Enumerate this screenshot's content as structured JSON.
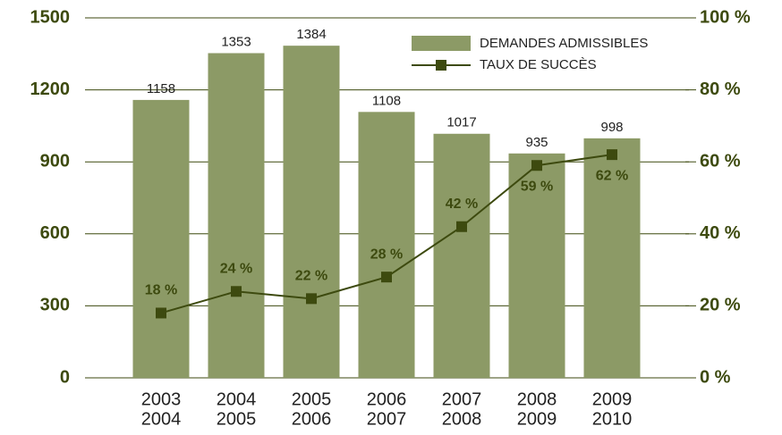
{
  "chart_data": {
    "type": "bar",
    "categories": [
      [
        "2003",
        "2004"
      ],
      [
        "2004",
        "2005"
      ],
      [
        "2005",
        "2006"
      ],
      [
        "2006",
        "2007"
      ],
      [
        "2007",
        "2008"
      ],
      [
        "2008",
        "2009"
      ],
      [
        "2009",
        "2010"
      ]
    ],
    "series": [
      {
        "name": "DEMANDES ADMISSIBLES",
        "color": "#8c9a66",
        "values": [
          1158,
          1353,
          1384,
          1108,
          1017,
          935,
          998
        ]
      },
      {
        "name": "TAUX DE SUCCÈS",
        "color": "#3d4a0f",
        "type": "line",
        "axis": "y2",
        "values": [
          18,
          24,
          22,
          28,
          42,
          59,
          62
        ],
        "value_labels": [
          "18 %",
          "24 %",
          "22 %",
          "28 %",
          "42 %",
          "59 %",
          "62 %"
        ]
      }
    ],
    "ylim": [
      0,
      1500
    ],
    "yticks": [
      0,
      300,
      600,
      900,
      1200,
      1500
    ],
    "y2lim": [
      0,
      100
    ],
    "y2ticks": [
      {
        "value": 0,
        "label": "0 %"
      },
      {
        "value": 20,
        "label": "20 %"
      },
      {
        "value": 40,
        "label": "40 %"
      },
      {
        "value": 60,
        "label": "60 %"
      },
      {
        "value": 80,
        "label": "80 %"
      },
      {
        "value": 100,
        "label": "100 %"
      }
    ],
    "grid": true,
    "legend": "top-right"
  }
}
